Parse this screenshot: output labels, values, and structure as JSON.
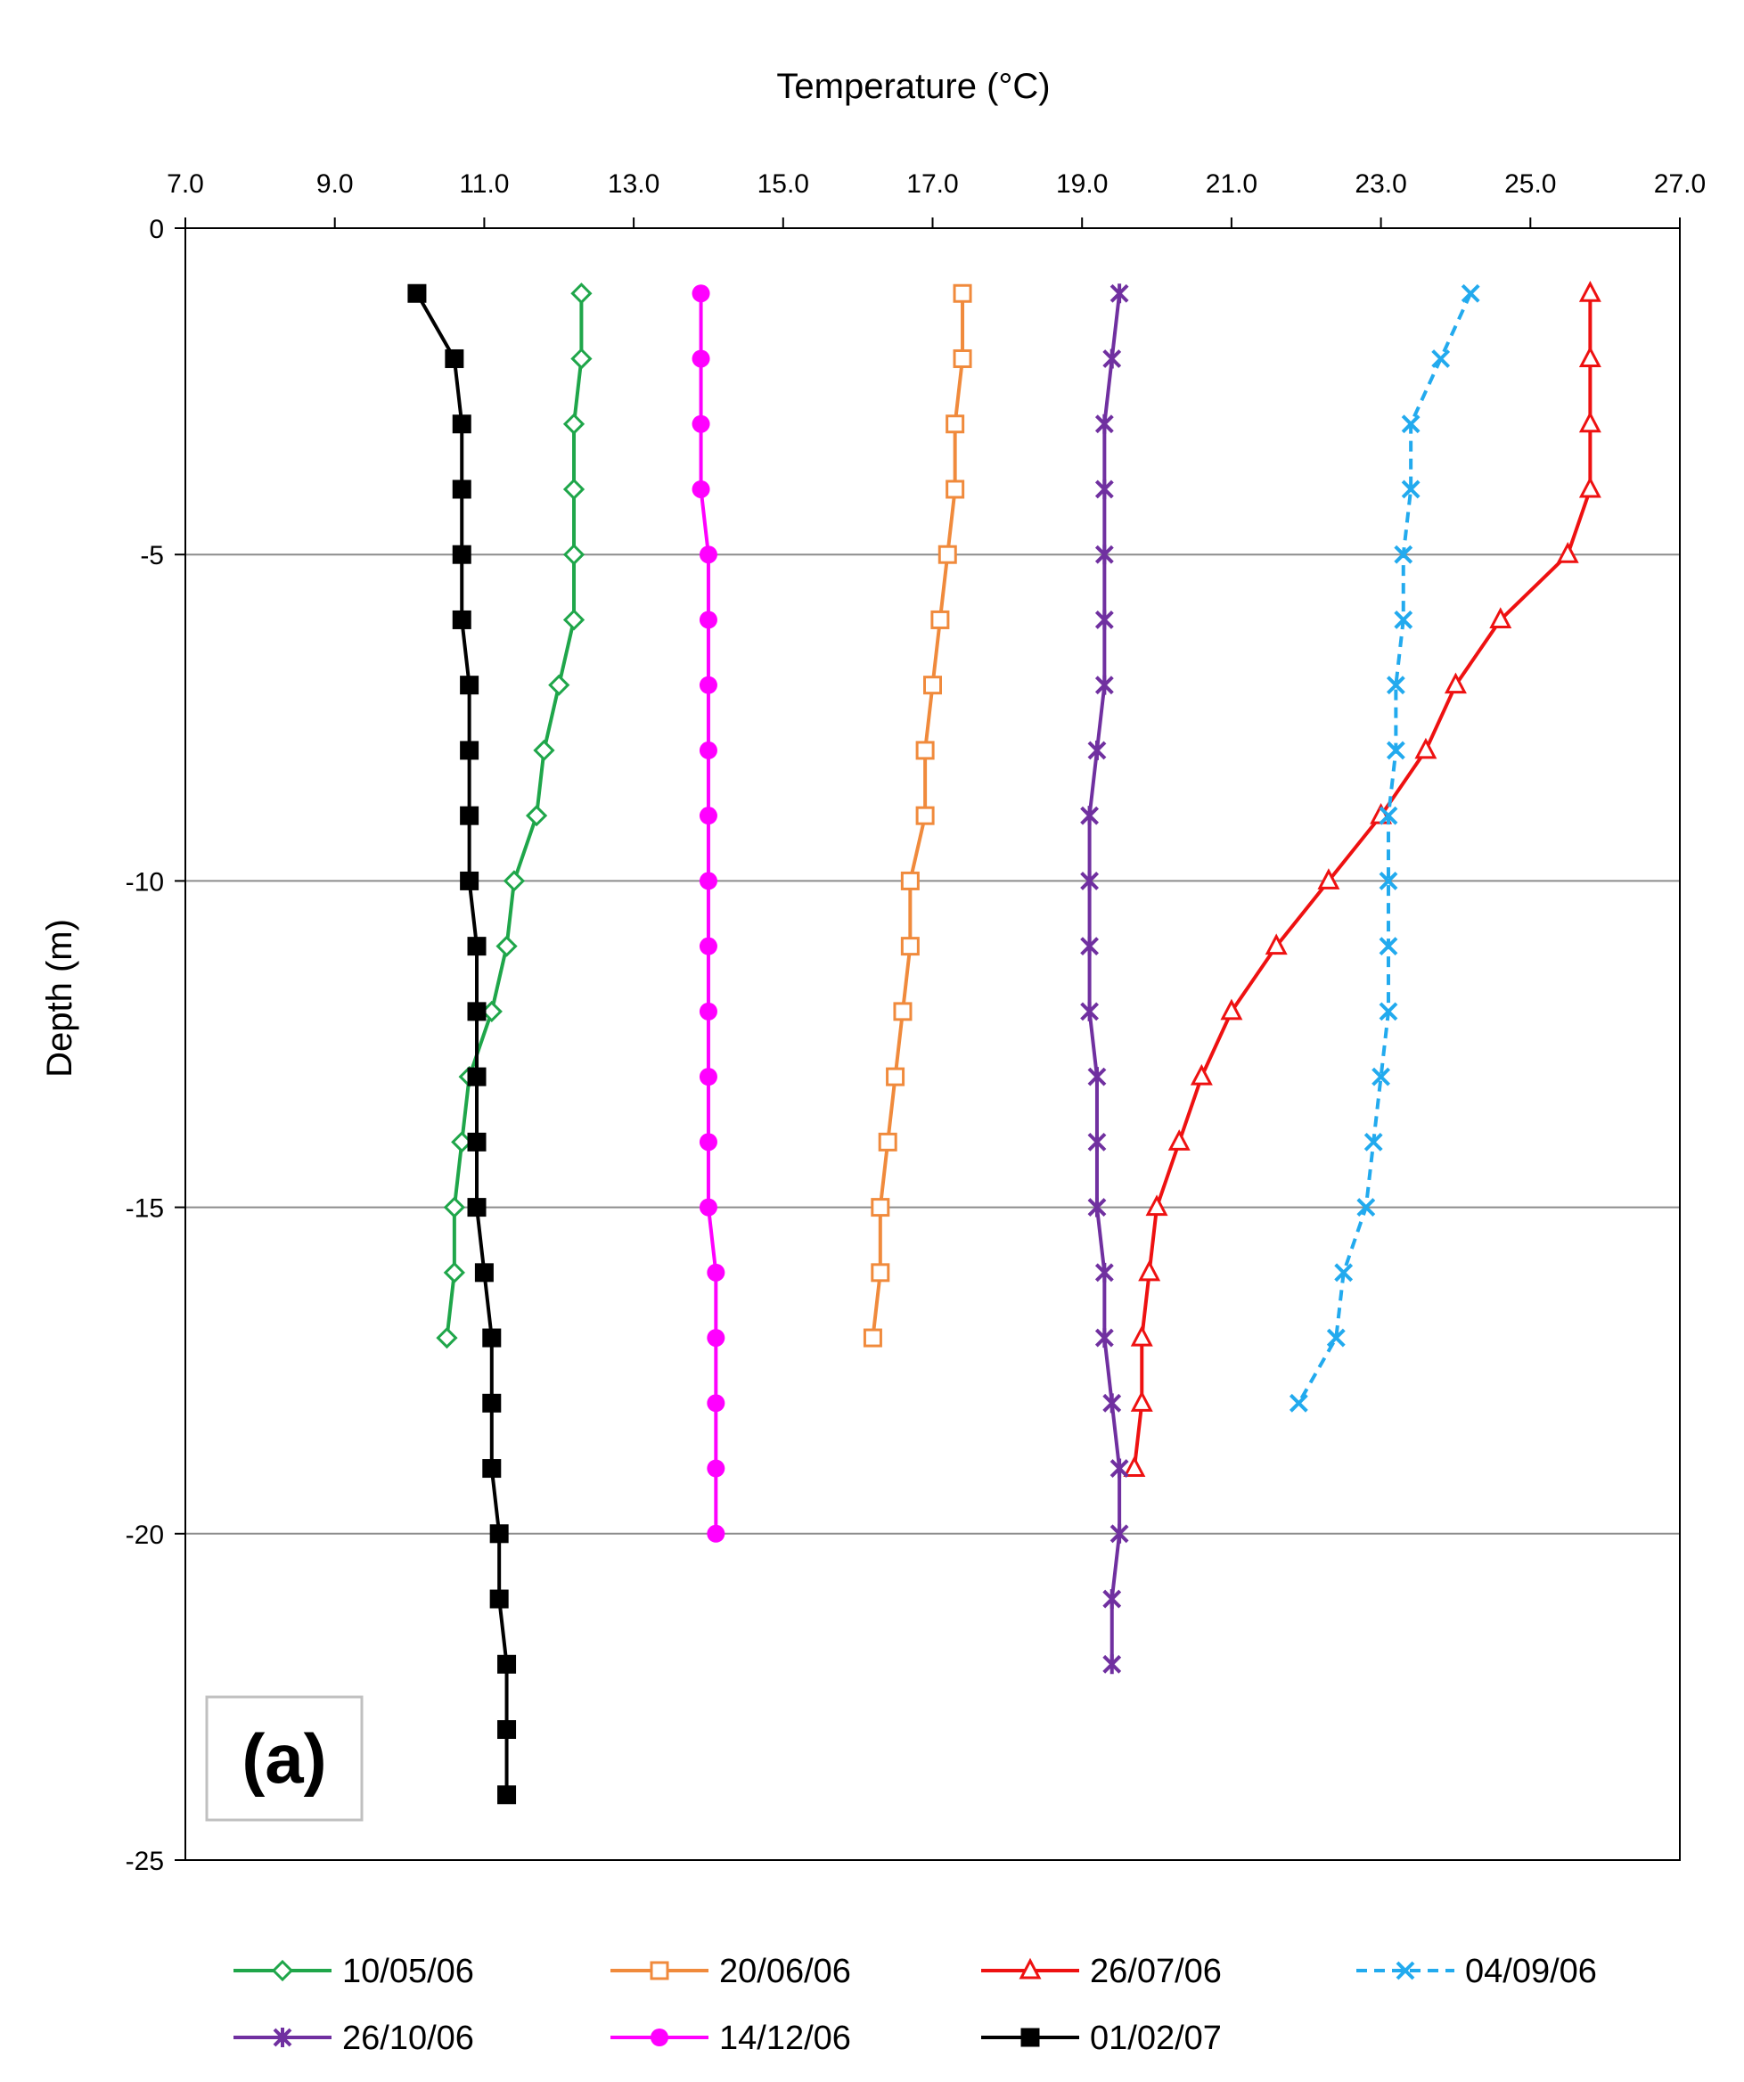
{
  "chart_data": {
    "type": "line",
    "title": "",
    "xlabel": "Temperature (°C)",
    "ylabel": "Depth (m)",
    "xlim": [
      7.0,
      27.0
    ],
    "ylim": [
      -25,
      0
    ],
    "x_ticks": [
      "7.0",
      "9.0",
      "11.0",
      "13.0",
      "15.0",
      "17.0",
      "19.0",
      "21.0",
      "23.0",
      "25.0",
      "27.0"
    ],
    "y_ticks": [
      "0",
      "-5",
      "-10",
      "-15",
      "-20",
      "-25"
    ],
    "x_axis_position": "top",
    "grid": "horizontal",
    "legend_position": "bottom",
    "panel_label": "(a)",
    "series": [
      {
        "name": "10/05/06",
        "color": "#1fa64a",
        "marker": "diamond-open",
        "dash": false,
        "points": [
          [
            12.3,
            -1
          ],
          [
            12.3,
            -2
          ],
          [
            12.2,
            -3
          ],
          [
            12.2,
            -4
          ],
          [
            12.2,
            -5
          ],
          [
            12.2,
            -6
          ],
          [
            12.0,
            -7
          ],
          [
            11.8,
            -8
          ],
          [
            11.7,
            -9
          ],
          [
            11.4,
            -10
          ],
          [
            11.3,
            -11
          ],
          [
            11.1,
            -12
          ],
          [
            10.8,
            -13
          ],
          [
            10.7,
            -14
          ],
          [
            10.6,
            -15
          ],
          [
            10.6,
            -16
          ],
          [
            10.5,
            -17
          ]
        ]
      },
      {
        "name": "20/06/06",
        "color": "#f08a3c",
        "marker": "square-open",
        "dash": false,
        "points": [
          [
            17.4,
            -1
          ],
          [
            17.4,
            -2
          ],
          [
            17.3,
            -3
          ],
          [
            17.3,
            -4
          ],
          [
            17.2,
            -5
          ],
          [
            17.1,
            -6
          ],
          [
            17.0,
            -7
          ],
          [
            16.9,
            -8
          ],
          [
            16.9,
            -9
          ],
          [
            16.7,
            -10
          ],
          [
            16.7,
            -11
          ],
          [
            16.6,
            -12
          ],
          [
            16.5,
            -13
          ],
          [
            16.4,
            -14
          ],
          [
            16.3,
            -15
          ],
          [
            16.3,
            -16
          ],
          [
            16.2,
            -17
          ]
        ]
      },
      {
        "name": "26/07/06",
        "color": "#ee1111",
        "marker": "triangle-open",
        "dash": false,
        "points": [
          [
            25.8,
            -1
          ],
          [
            25.8,
            -2
          ],
          [
            25.8,
            -3
          ],
          [
            25.8,
            -4
          ],
          [
            25.5,
            -5
          ],
          [
            24.6,
            -6
          ],
          [
            24.0,
            -7
          ],
          [
            23.6,
            -8
          ],
          [
            23.0,
            -9
          ],
          [
            22.3,
            -10
          ],
          [
            21.6,
            -11
          ],
          [
            21.0,
            -12
          ],
          [
            20.6,
            -13
          ],
          [
            20.3,
            -14
          ],
          [
            20.0,
            -15
          ],
          [
            19.9,
            -16
          ],
          [
            19.8,
            -17
          ],
          [
            19.8,
            -18
          ],
          [
            19.7,
            -19
          ]
        ]
      },
      {
        "name": "04/09/06",
        "color": "#22aaee",
        "marker": "x",
        "dash": true,
        "points": [
          [
            24.2,
            -1
          ],
          [
            23.8,
            -2
          ],
          [
            23.4,
            -3
          ],
          [
            23.4,
            -4
          ],
          [
            23.3,
            -5
          ],
          [
            23.3,
            -6
          ],
          [
            23.2,
            -7
          ],
          [
            23.2,
            -8
          ],
          [
            23.1,
            -9
          ],
          [
            23.1,
            -10
          ],
          [
            23.1,
            -11
          ],
          [
            23.1,
            -12
          ],
          [
            23.0,
            -13
          ],
          [
            22.9,
            -14
          ],
          [
            22.8,
            -15
          ],
          [
            22.5,
            -16
          ],
          [
            22.4,
            -17
          ],
          [
            21.9,
            -18
          ]
        ]
      },
      {
        "name": "26/10/06",
        "color": "#7030a0",
        "marker": "asterisk",
        "dash": false,
        "points": [
          [
            19.5,
            -1
          ],
          [
            19.4,
            -2
          ],
          [
            19.3,
            -3
          ],
          [
            19.3,
            -4
          ],
          [
            19.3,
            -5
          ],
          [
            19.3,
            -6
          ],
          [
            19.3,
            -7
          ],
          [
            19.2,
            -8
          ],
          [
            19.1,
            -9
          ],
          [
            19.1,
            -10
          ],
          [
            19.1,
            -11
          ],
          [
            19.1,
            -12
          ],
          [
            19.2,
            -13
          ],
          [
            19.2,
            -14
          ],
          [
            19.2,
            -15
          ],
          [
            19.3,
            -16
          ],
          [
            19.3,
            -17
          ],
          [
            19.4,
            -18
          ],
          [
            19.5,
            -19
          ],
          [
            19.5,
            -20
          ],
          [
            19.4,
            -21
          ],
          [
            19.4,
            -22
          ]
        ]
      },
      {
        "name": "14/12/06",
        "color": "#ff00ff",
        "marker": "circle",
        "dash": false,
        "points": [
          [
            13.9,
            -1
          ],
          [
            13.9,
            -2
          ],
          [
            13.9,
            -3
          ],
          [
            13.9,
            -4
          ],
          [
            14.0,
            -5
          ],
          [
            14.0,
            -6
          ],
          [
            14.0,
            -7
          ],
          [
            14.0,
            -8
          ],
          [
            14.0,
            -9
          ],
          [
            14.0,
            -10
          ],
          [
            14.0,
            -11
          ],
          [
            14.0,
            -12
          ],
          [
            14.0,
            -13
          ],
          [
            14.0,
            -14
          ],
          [
            14.0,
            -15
          ],
          [
            14.1,
            -16
          ],
          [
            14.1,
            -17
          ],
          [
            14.1,
            -18
          ],
          [
            14.1,
            -19
          ],
          [
            14.1,
            -20
          ]
        ]
      },
      {
        "name": "01/02/07",
        "color": "#000000",
        "marker": "square",
        "dash": false,
        "points": [
          [
            10.1,
            -1
          ],
          [
            10.6,
            -2
          ],
          [
            10.7,
            -3
          ],
          [
            10.7,
            -4
          ],
          [
            10.7,
            -5
          ],
          [
            10.7,
            -6
          ],
          [
            10.8,
            -7
          ],
          [
            10.8,
            -8
          ],
          [
            10.8,
            -9
          ],
          [
            10.8,
            -10
          ],
          [
            10.9,
            -11
          ],
          [
            10.9,
            -12
          ],
          [
            10.9,
            -13
          ],
          [
            10.9,
            -14
          ],
          [
            10.9,
            -15
          ],
          [
            11.0,
            -16
          ],
          [
            11.1,
            -17
          ],
          [
            11.1,
            -18
          ],
          [
            11.1,
            -19
          ],
          [
            11.2,
            -20
          ],
          [
            11.2,
            -21
          ],
          [
            11.3,
            -22
          ],
          [
            11.3,
            -23
          ],
          [
            11.3,
            -24
          ]
        ]
      }
    ]
  }
}
